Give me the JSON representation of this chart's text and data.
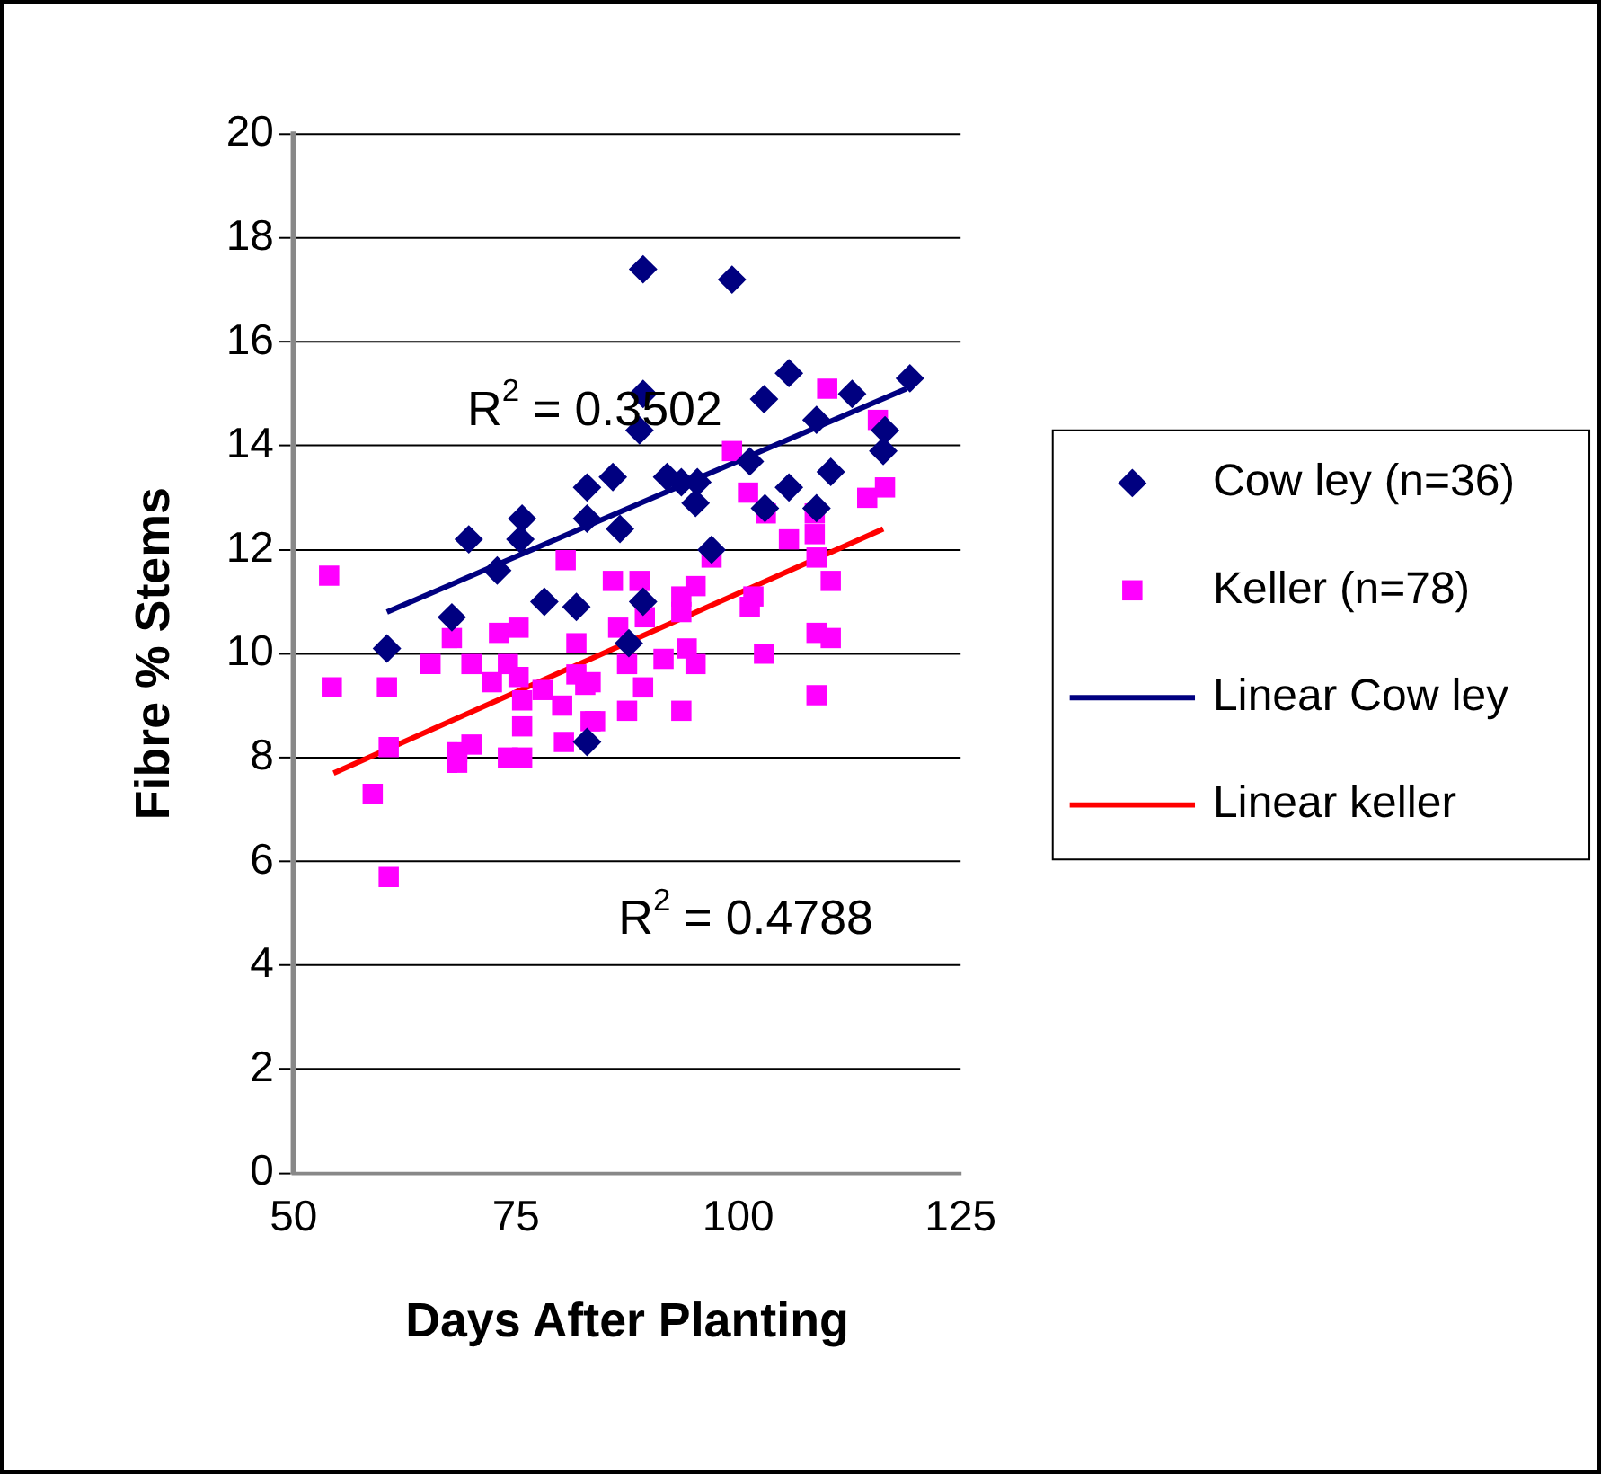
{
  "chart_data": {
    "type": "scatter",
    "xlabel": "Days After Planting",
    "ylabel": "Fibre % Stems",
    "xlim": [
      50,
      125
    ],
    "xticks": [
      50,
      75,
      100,
      125
    ],
    "ylim": [
      0,
      20
    ],
    "yticks": [
      0,
      2,
      4,
      6,
      8,
      10,
      12,
      14,
      16,
      18,
      20
    ],
    "grid": "y",
    "legend": "right",
    "series": [
      {
        "name": "Cow ley (n=36)",
        "type": "scatter",
        "marker": "diamond",
        "color": "#000080",
        "x": [
          60.5,
          67.8,
          69.7,
          72.9,
          75.5,
          75.7,
          78.2,
          81.8,
          83,
          83,
          83,
          85.9,
          87.7,
          88.9,
          89.3,
          89.3,
          89.3,
          92,
          93.6,
          95.4,
          95.2,
          99.3,
          101.3,
          102.9,
          105.7,
          105.7,
          108.8,
          110.4,
          112.8,
          116.3,
          116.5,
          119.3,
          86.7,
          108.8,
          103,
          97
        ],
        "values": [
          10.1,
          10.7,
          12.2,
          11.6,
          12.2,
          12.6,
          11.0,
          10.9,
          8.3,
          12.6,
          13.2,
          13.4,
          10.2,
          14.3,
          15.0,
          17.4,
          11.0,
          13.4,
          13.3,
          13.3,
          12.9,
          17.2,
          13.7,
          14.9,
          15.4,
          13.2,
          14.5,
          13.5,
          15.0,
          13.9,
          14.3,
          15.3,
          12.4,
          12.8,
          12.8,
          12.0
        ]
      },
      {
        "name": "Keller (n=78)",
        "type": "scatter",
        "marker": "square",
        "color": "#ff00ff",
        "x": [
          54,
          54.3,
          60.5,
          60.7,
          58.9,
          60.7,
          65.4,
          67.8,
          70,
          68.4,
          68.4,
          70,
          73.1,
          75.3,
          74.1,
          72.3,
          75.3,
          75.7,
          75.7,
          74.1,
          75.7,
          78,
          80.2,
          80.4,
          81.8,
          82.8,
          83.4,
          81.8,
          80.6,
          85.9,
          86.5,
          87.5,
          87.5,
          88.9,
          89.5,
          93.6,
          95.2,
          93.6,
          97,
          101.7,
          101.3,
          108.8,
          110.4,
          102.9,
          108.8,
          110.4,
          91.6,
          94.2,
          95.2,
          89.3,
          93.6,
          83.9,
          83.4,
          110,
          115.7,
          99.3,
          101.1,
          103.1,
          105.7,
          108.6,
          108.6,
          114.5,
          116.5,
          108.8
        ],
        "values": [
          11.5,
          9.35,
          9.35,
          8.2,
          7.3,
          5.7,
          9.8,
          10.3,
          9.8,
          7.9,
          8.1,
          8.25,
          10.4,
          10.5,
          9.8,
          9.45,
          9.55,
          9.1,
          8.6,
          8.0,
          8.0,
          9.3,
          9.0,
          8.3,
          9.6,
          9.4,
          8.7,
          10.2,
          11.8,
          11.4,
          10.5,
          9.8,
          8.9,
          11.4,
          10.7,
          11.1,
          11.3,
          10.8,
          11.85,
          11.1,
          10.9,
          10.4,
          10.3,
          10.0,
          9.2,
          11.4,
          9.9,
          10.1,
          9.8,
          9.35,
          8.9,
          8.7,
          9.45,
          15.1,
          14.5,
          13.9,
          13.1,
          12.7,
          12.2,
          12.7,
          12.3,
          13.0,
          13.2,
          11.85
        ]
      },
      {
        "name": "Linear Cow ley",
        "type": "line",
        "marker": "none",
        "color": "#000080",
        "x": [
          60.5,
          118.9
        ],
        "values": [
          10.8,
          15.1
        ]
      },
      {
        "name": "Linear keller",
        "type": "line",
        "marker": "none",
        "color": "#ff0000",
        "x": [
          54.5,
          116.3
        ],
        "values": [
          7.7,
          12.4
        ]
      }
    ],
    "annotations": [
      "R$^{2}$ = 0.3502",
      "R$^{2}$ = 0.4788"
    ]
  }
}
